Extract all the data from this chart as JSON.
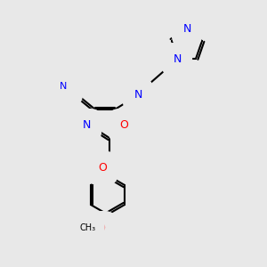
{
  "bg_color": "#e8e8e8",
  "bond_color": "#000000",
  "bond_width": 1.5,
  "atom_colors": {
    "N": "#0000ff",
    "O": "#ff0000",
    "C": "#000000",
    "H": "#7fbfbf"
  },
  "font_size": 9,
  "font_size_small": 8
}
